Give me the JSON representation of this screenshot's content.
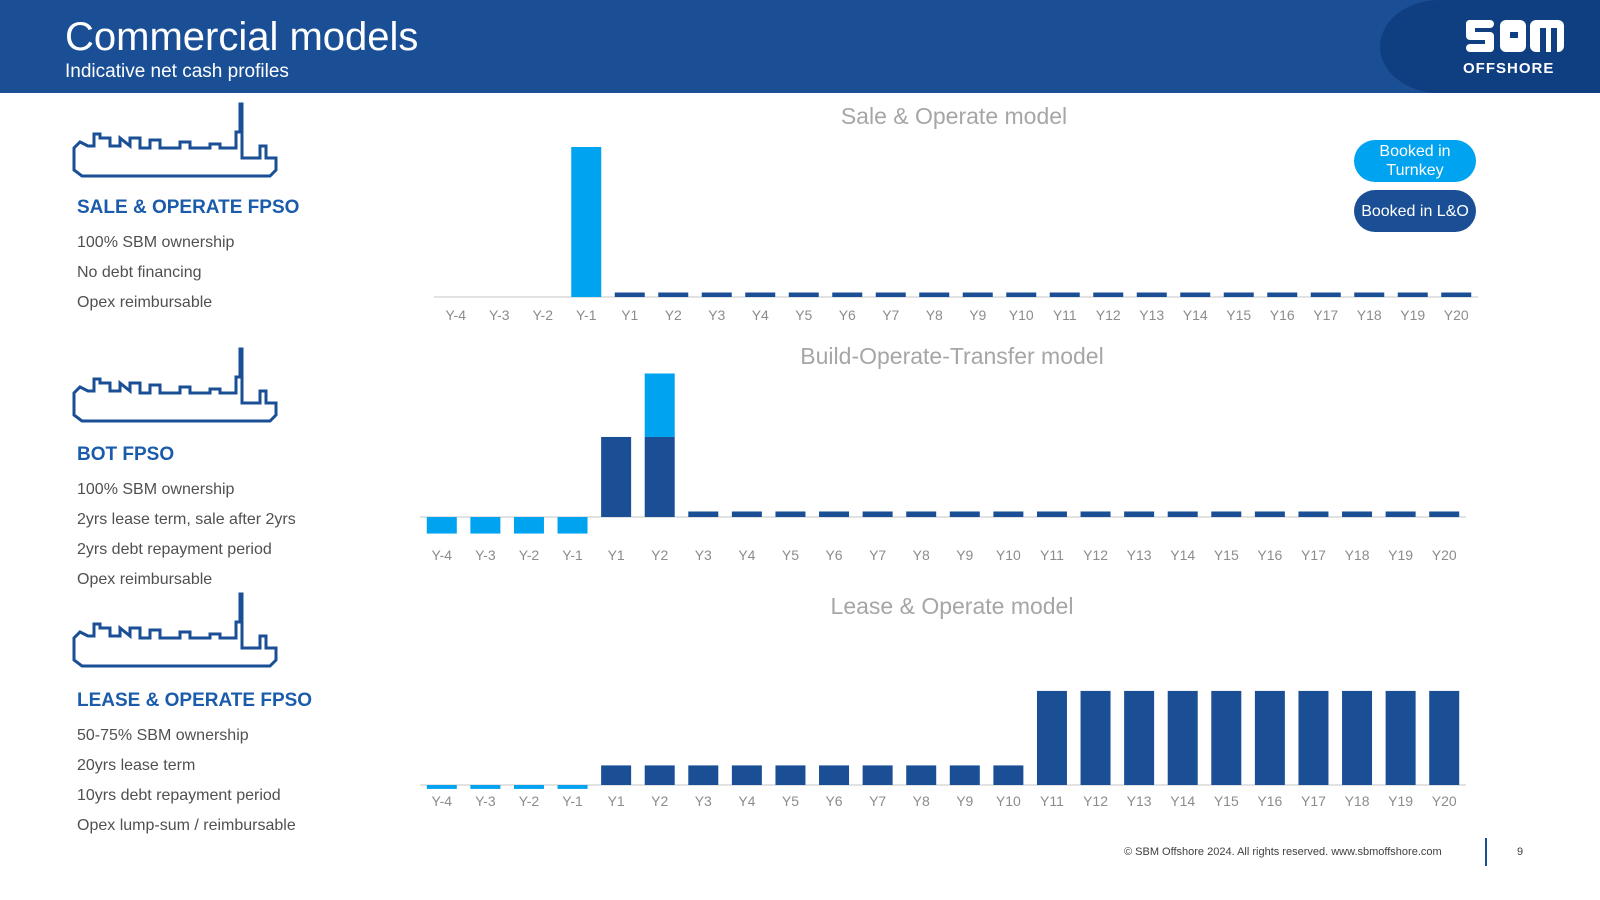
{
  "header": {
    "title": "Commercial models",
    "subtitle": "Indicative net cash profiles"
  },
  "logo": {
    "text": "OFFSHORE"
  },
  "colors": {
    "header": "#1a4f96",
    "turnkey": "#00a3ef",
    "lo": "#1a4f96",
    "axis_text": "#8c8c8c",
    "title_text": "#a6a6a6"
  },
  "models": [
    {
      "title": "SALE & OPERATE FPSO",
      "points": [
        "100% SBM ownership",
        "No debt financing",
        "Opex reimbursable"
      ]
    },
    {
      "title": "BOT FPSO",
      "points": [
        "100% SBM ownership",
        "2yrs lease term, sale after 2yrs",
        "2yrs debt repayment period",
        "Opex reimbursable"
      ]
    },
    {
      "title": "LEASE & OPERATE FPSO",
      "points": [
        "50-75% SBM ownership",
        "20yrs lease term",
        "10yrs debt repayment period",
        "Opex lump-sum / reimbursable"
      ]
    }
  ],
  "legend": {
    "turnkey": "Booked in Turnkey",
    "lo": "Booked in L&O"
  },
  "chart_data": [
    {
      "type": "bar",
      "title": "Sale & Operate model",
      "stacked": true,
      "categories": [
        "Y-4",
        "Y-3",
        "Y-2",
        "Y-1",
        "Y1",
        "Y2",
        "Y3",
        "Y4",
        "Y5",
        "Y6",
        "Y7",
        "Y8",
        "Y9",
        "Y10",
        "Y11",
        "Y12",
        "Y13",
        "Y14",
        "Y15",
        "Y16",
        "Y17",
        "Y18",
        "Y19",
        "Y20"
      ],
      "series": [
        {
          "name": "Booked in Turnkey",
          "color": "#00a3ef",
          "values": [
            0,
            0,
            0,
            100,
            0,
            0,
            0,
            0,
            0,
            0,
            0,
            0,
            0,
            0,
            0,
            0,
            0,
            0,
            0,
            0,
            0,
            0,
            0,
            0
          ]
        },
        {
          "name": "Booked in L&O",
          "color": "#1a4f96",
          "values": [
            0,
            0,
            0,
            0,
            3,
            3,
            3,
            3,
            3,
            3,
            3,
            3,
            3,
            3,
            3,
            3,
            3,
            3,
            3,
            3,
            3,
            3,
            3,
            3
          ]
        }
      ],
      "ylim": [
        0,
        100
      ]
    },
    {
      "type": "bar",
      "title": "Build-Operate-Transfer model",
      "stacked": true,
      "categories": [
        "Y-4",
        "Y-3",
        "Y-2",
        "Y-1",
        "Y1",
        "Y2",
        "Y3",
        "Y4",
        "Y5",
        "Y6",
        "Y7",
        "Y8",
        "Y9",
        "Y10",
        "Y11",
        "Y12",
        "Y13",
        "Y14",
        "Y15",
        "Y16",
        "Y17",
        "Y18",
        "Y19",
        "Y20"
      ],
      "series": [
        {
          "name": "Booked in L&O",
          "color": "#1a4f96",
          "values": [
            0,
            0,
            0,
            0,
            58,
            58,
            4,
            4,
            4,
            4,
            4,
            4,
            4,
            4,
            4,
            4,
            4,
            4,
            4,
            4,
            4,
            4,
            4,
            4
          ]
        },
        {
          "name": "Booked in Turnkey",
          "color": "#00a3ef",
          "values": [
            -12,
            -12,
            -12,
            -12,
            0,
            46,
            0,
            0,
            0,
            0,
            0,
            0,
            0,
            0,
            0,
            0,
            0,
            0,
            0,
            0,
            0,
            0,
            0,
            0
          ]
        }
      ],
      "ylim": [
        -12,
        104
      ]
    },
    {
      "type": "bar",
      "title": "Lease & Operate model",
      "stacked": true,
      "categories": [
        "Y-4",
        "Y-3",
        "Y-2",
        "Y-1",
        "Y1",
        "Y2",
        "Y3",
        "Y4",
        "Y5",
        "Y6",
        "Y7",
        "Y8",
        "Y9",
        "Y10",
        "Y11",
        "Y12",
        "Y13",
        "Y14",
        "Y15",
        "Y16",
        "Y17",
        "Y18",
        "Y19",
        "Y20"
      ],
      "series": [
        {
          "name": "Booked in Turnkey",
          "color": "#00a3ef",
          "values": [
            -4,
            -4,
            -4,
            -4,
            0,
            0,
            0,
            0,
            0,
            0,
            0,
            0,
            0,
            0,
            0,
            0,
            0,
            0,
            0,
            0,
            0,
            0,
            0,
            0
          ]
        },
        {
          "name": "Booked in L&O",
          "color": "#1a4f96",
          "values": [
            0,
            0,
            0,
            0,
            20,
            20,
            20,
            20,
            20,
            20,
            20,
            20,
            20,
            20,
            96,
            96,
            96,
            96,
            96,
            96,
            96,
            96,
            96,
            96
          ]
        }
      ],
      "ylim": [
        -4,
        96
      ]
    }
  ],
  "footer": {
    "copyright": "© SBM Offshore 2024. All rights reserved. www.sbmoffshore.com",
    "page": "9"
  }
}
